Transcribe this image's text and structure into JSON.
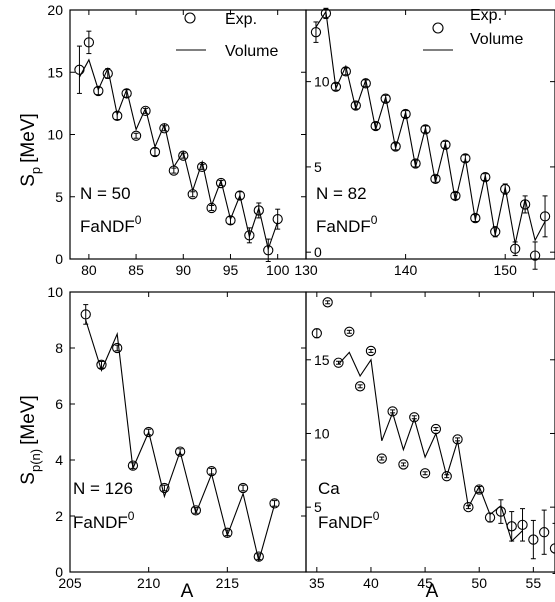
{
  "figure": {
    "shared_ylabel": "S",
    "shared_ylabel_sub": "p",
    "shared_ylabel_unit": "[MeV]",
    "bottom_ylabel": "S",
    "bottom_ylabel_sub": "p(n)",
    "bottom_ylabel_unit": "[MeV]",
    "xlabel": "A",
    "legend": {
      "exp": "Exp.",
      "volume": "Volume"
    }
  },
  "chart_data": [
    {
      "id": "n50",
      "type": "line",
      "annotation_main": "N = 50",
      "annotation_model": "FaNDF",
      "annotation_model_sup": "0",
      "xlim": [
        78,
        103
      ],
      "ylim": [
        0,
        20
      ],
      "xticks": [
        80,
        85,
        90,
        95,
        100
      ],
      "yticks": [
        0,
        5,
        10,
        15,
        20
      ],
      "series": [
        {
          "kind": "exp",
          "x": [
            79,
            80,
            81,
            82,
            83,
            84,
            85,
            86,
            87,
            88,
            89,
            90,
            91,
            92,
            93,
            94,
            95,
            96,
            97,
            98,
            99,
            100
          ],
          "y": [
            15.2,
            17.4,
            13.5,
            14.9,
            11.5,
            13.3,
            9.9,
            11.9,
            8.6,
            10.5,
            7.1,
            8.3,
            5.2,
            7.4,
            4.1,
            6.1,
            3.1,
            5.1,
            1.9,
            3.9,
            0.7,
            3.2
          ],
          "err": [
            1.9,
            0.9,
            0.3,
            0.4,
            0.3,
            0.3,
            0.2,
            0.2,
            0.3,
            0.2,
            0.2,
            0.2,
            0.2,
            0.2,
            0.2,
            0.2,
            0.3,
            0.3,
            0.6,
            0.6,
            0.9,
            0.8
          ]
        },
        {
          "kind": "volume",
          "x": [
            79,
            80,
            81,
            82,
            83,
            84,
            85,
            86,
            87,
            88,
            89,
            90,
            91,
            92,
            93,
            94,
            95,
            96,
            97,
            98,
            99,
            100
          ],
          "y": [
            14.6,
            16.0,
            13.6,
            15.3,
            11.6,
            13.6,
            10.4,
            12.1,
            9.0,
            10.8,
            7.4,
            8.6,
            5.5,
            7.8,
            4.3,
            6.3,
            3.2,
            5.1,
            1.8,
            4.1,
            0.8,
            3.0
          ]
        }
      ]
    },
    {
      "id": "n82",
      "type": "line",
      "annotation_main": "N = 82",
      "annotation_model": "FaNDF",
      "annotation_model_sup": "0",
      "xlim": [
        130,
        155
      ],
      "ylim": [
        -0.4,
        14.2
      ],
      "xticks": [
        130,
        140,
        150
      ],
      "xtick_labels": [
        "130",
        "140",
        "150"
      ],
      "yticks": [
        0,
        5,
        10
      ],
      "ytick_labels": [
        "0",
        "5",
        "10"
      ],
      "series": [
        {
          "kind": "exp",
          "x": [
            131,
            132,
            133,
            134,
            135,
            136,
            137,
            138,
            139,
            140,
            141,
            142,
            143,
            144,
            145,
            146,
            147,
            148,
            149,
            150,
            151,
            152,
            153,
            154
          ],
          "y": [
            12.9,
            14.0,
            9.7,
            10.6,
            8.6,
            9.9,
            7.4,
            9.0,
            6.2,
            8.1,
            5.2,
            7.2,
            4.3,
            6.3,
            3.3,
            5.5,
            2.0,
            4.4,
            1.2,
            3.7,
            0.2,
            2.8,
            -0.2,
            2.1
          ],
          "err": [
            0.6,
            0.3,
            0.2,
            0.2,
            0.2,
            0.2,
            0.2,
            0.2,
            0.2,
            0.2,
            0.2,
            0.2,
            0.2,
            0.2,
            0.2,
            0.2,
            0.2,
            0.2,
            0.3,
            0.3,
            0.4,
            0.5,
            0.8,
            1.2
          ]
        },
        {
          "kind": "volume",
          "x": [
            131,
            132,
            133,
            134,
            135,
            136,
            137,
            138,
            139,
            140,
            141,
            142,
            143,
            144,
            145,
            146,
            147,
            148,
            149,
            150,
            151,
            152,
            153,
            154
          ],
          "y": [
            13.2,
            14.1,
            9.6,
            10.9,
            8.4,
            10.1,
            7.2,
            9.1,
            6.1,
            8.2,
            5.0,
            7.3,
            4.1,
            6.4,
            3.0,
            5.5,
            1.9,
            4.5,
            1.0,
            3.8,
            0.5,
            3.1,
            0.7,
            1.8
          ]
        }
      ]
    },
    {
      "id": "n126",
      "type": "line",
      "annotation_main": "N = 126",
      "annotation_model": "FaNDF",
      "annotation_model_sup": "0",
      "xlim": [
        205,
        220
      ],
      "ylim": [
        0,
        10
      ],
      "xticks": [
        205,
        210,
        215
      ],
      "yticks": [
        0,
        2,
        4,
        6,
        8,
        10
      ],
      "series": [
        {
          "kind": "exp",
          "x": [
            206,
            207,
            208,
            209,
            210,
            211,
            212,
            213,
            214,
            215,
            216,
            217,
            218
          ],
          "y": [
            9.2,
            7.4,
            8.0,
            3.8,
            5.0,
            3.0,
            4.3,
            2.2,
            3.6,
            1.4,
            3.0,
            0.55,
            2.45
          ],
          "err": [
            0.35,
            0.12,
            0.1,
            0.1,
            0.1,
            0.1,
            0.1,
            0.1,
            0.1,
            0.1,
            0.1,
            0.1,
            0.1
          ]
        },
        {
          "kind": "volume",
          "x": [
            206,
            207,
            208,
            209,
            210,
            211,
            212,
            213,
            214,
            215,
            216,
            217,
            218
          ],
          "y": [
            9.0,
            7.2,
            8.5,
            3.7,
            5.0,
            2.7,
            4.3,
            2.1,
            3.5,
            1.3,
            2.8,
            0.4,
            2.4
          ]
        }
      ]
    },
    {
      "id": "ca",
      "type": "line",
      "annotation_main": "Ca",
      "annotation_model": "FaNDF",
      "annotation_model_sup": "0",
      "xlim": [
        34,
        57
      ],
      "ylim": [
        0.6,
        19.6
      ],
      "xticks": [
        35,
        40,
        45,
        50,
        55
      ],
      "yticks": [
        5,
        10,
        15
      ],
      "series": [
        {
          "kind": "exp",
          "x": [
            35,
            36,
            37,
            38,
            39,
            40,
            41,
            42,
            43,
            44,
            45,
            46,
            47,
            48,
            49,
            50,
            51,
            52,
            53,
            54,
            55,
            56,
            57
          ],
          "y": [
            16.8,
            18.9,
            14.8,
            16.9,
            13.2,
            15.6,
            8.3,
            11.5,
            7.9,
            11.1,
            7.3,
            10.3,
            7.1,
            9.6,
            5.0,
            6.2,
            4.3,
            4.7,
            3.7,
            3.8,
            2.8,
            3.3,
            2.2
          ],
          "err": [
            0.3,
            0.1,
            0.1,
            0.1,
            0.1,
            0.1,
            0.1,
            0.1,
            0.1,
            0.1,
            0.1,
            0.1,
            0.1,
            0.1,
            0.1,
            0.2,
            0.3,
            0.8,
            1.0,
            1.1,
            1.3,
            1.5,
            1.7
          ]
        },
        {
          "kind": "volume",
          "x": [
            37,
            38,
            39,
            40,
            41,
            42,
            43,
            44,
            45,
            46,
            47,
            48,
            49,
            50,
            51,
            52,
            53,
            54
          ],
          "y": [
            14.7,
            15.5,
            13.9,
            15.0,
            9.5,
            11.4,
            8.9,
            11.0,
            8.4,
            10.0,
            7.1,
            9.5,
            5.0,
            6.4,
            4.5,
            5.1,
            2.7,
            3.4
          ]
        }
      ]
    }
  ]
}
